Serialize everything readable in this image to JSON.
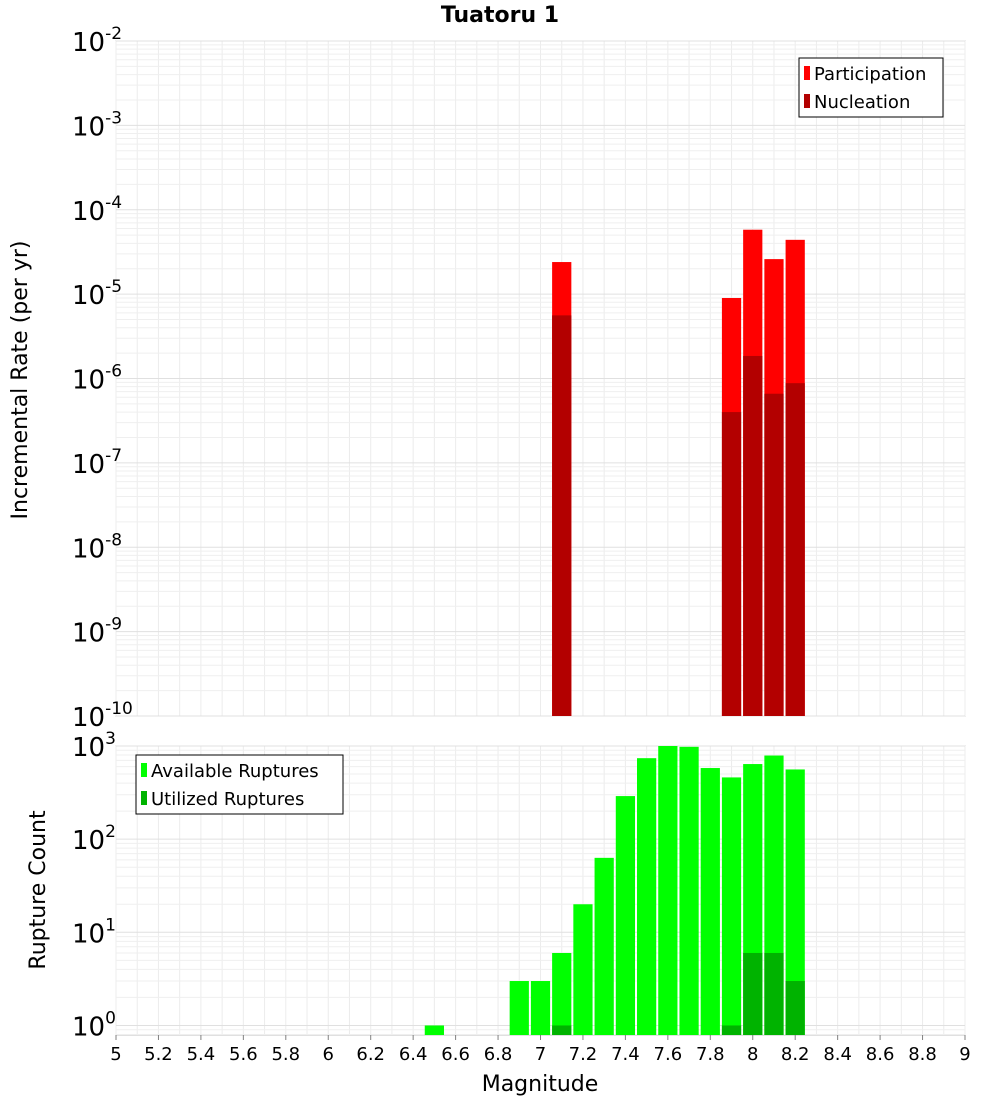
{
  "chart_data": [
    {
      "type": "bar",
      "title": "Tuatoru 1",
      "ylabel": "Incremental Rate (per yr)",
      "xlabel": "",
      "y_scale": "log",
      "ylim": [
        1e-10,
        0.01
      ],
      "xlim": [
        5,
        9
      ],
      "y_ticks": [
        {
          "mant": "10",
          "exp": "-10"
        },
        {
          "mant": "10",
          "exp": "-9"
        },
        {
          "mant": "10",
          "exp": "-8"
        },
        {
          "mant": "10",
          "exp": "-7"
        },
        {
          "mant": "10",
          "exp": "-6"
        },
        {
          "mant": "10",
          "exp": "-5"
        },
        {
          "mant": "10",
          "exp": "-4"
        },
        {
          "mant": "10",
          "exp": "-3"
        },
        {
          "mant": "10",
          "exp": "-2"
        }
      ],
      "legend_position": "top-right",
      "series": [
        {
          "name": "Participation",
          "color": "#ff0000",
          "points": [
            [
              7.1,
              2.4e-05
            ],
            [
              7.9,
              9e-06
            ],
            [
              8.0,
              5.8e-05
            ],
            [
              8.1,
              2.6e-05
            ],
            [
              8.2,
              4.4e-05
            ]
          ]
        },
        {
          "name": "Nucleation",
          "color": "#b30000",
          "points": [
            [
              7.1,
              5.6e-06
            ],
            [
              7.9,
              4e-07
            ],
            [
              8.0,
              1.85e-06
            ],
            [
              8.1,
              6.6e-07
            ],
            [
              8.2,
              8.8e-07
            ]
          ]
        }
      ]
    },
    {
      "type": "bar",
      "ylabel": "Rupture Count",
      "xlabel": "Magnitude",
      "y_scale": "log",
      "ylim": [
        0.79,
        1000
      ],
      "xlim": [
        5,
        9
      ],
      "x_ticks": [
        "5",
        "5.2",
        "5.4",
        "5.6",
        "5.8",
        "6",
        "6.2",
        "6.4",
        "6.6",
        "6.8",
        "7",
        "7.2",
        "7.4",
        "7.6",
        "7.8",
        "8",
        "8.2",
        "8.4",
        "8.6",
        "8.8",
        "9"
      ],
      "y_ticks": [
        {
          "mant": "10",
          "exp": "0"
        },
        {
          "mant": "10",
          "exp": "1"
        },
        {
          "mant": "10",
          "exp": "2"
        },
        {
          "mant": "10",
          "exp": "3"
        }
      ],
      "legend_position": "top-left",
      "series": [
        {
          "name": "Available Ruptures",
          "color": "#00ff00",
          "points": [
            [
              6.5,
              1
            ],
            [
              6.9,
              3
            ],
            [
              7.0,
              3
            ],
            [
              7.1,
              6
            ],
            [
              7.2,
              20
            ],
            [
              7.3,
              63
            ],
            [
              7.4,
              290
            ],
            [
              7.5,
              740
            ],
            [
              7.6,
              1000
            ],
            [
              7.7,
              980
            ],
            [
              7.8,
              580
            ],
            [
              7.9,
              460
            ],
            [
              8.0,
              640
            ],
            [
              8.1,
              790
            ],
            [
              8.2,
              560
            ]
          ]
        },
        {
          "name": "Utilized Ruptures",
          "color": "#00b300",
          "points": [
            [
              7.1,
              1
            ],
            [
              7.9,
              1
            ],
            [
              8.0,
              6
            ],
            [
              8.1,
              6
            ],
            [
              8.2,
              3
            ]
          ]
        }
      ]
    }
  ]
}
